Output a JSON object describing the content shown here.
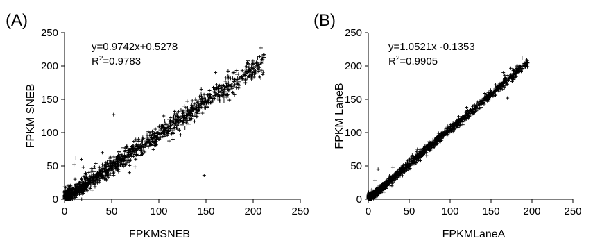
{
  "chart_data": [
    {
      "panel_label": "(A)",
      "type": "scatter",
      "xlabel": "FPKMSNEB",
      "ylabel": "FPKM SNEB",
      "xlim": [
        0,
        250
      ],
      "ylim": [
        0,
        250
      ],
      "xticks": [
        "0",
        "50",
        "100",
        "150",
        "200",
        "250"
      ],
      "yticks": [
        "0",
        "50",
        "100",
        "150",
        "200",
        "250"
      ],
      "grid": false,
      "marker": "+",
      "equation": "y=0.9742x+0.5278",
      "r2_prefix": "R",
      "r2_sup": "2",
      "r2_value": "=0.9783",
      "trendline": {
        "slope": 0.9742,
        "intercept": 0.5278,
        "x_range": [
          0,
          210
        ]
      },
      "point_cloud": {
        "x_max": 212,
        "spread_at_low": 14,
        "spread_at_high": 18
      },
      "outliers": [
        [
          12,
          62
        ],
        [
          18,
          60
        ],
        [
          52,
          127
        ],
        [
          148,
          36
        ],
        [
          130,
          147
        ],
        [
          160,
          190
        ],
        [
          6,
          20
        ],
        [
          10,
          52
        ],
        [
          145,
          165
        ],
        [
          105,
          125
        ],
        [
          20,
          48
        ],
        [
          40,
          70
        ]
      ]
    },
    {
      "panel_label": "(B)",
      "type": "scatter",
      "xlabel": "FPKMLaneA",
      "ylabel": "FPKM LaneB",
      "xlim": [
        0,
        250
      ],
      "ylim": [
        0,
        250
      ],
      "xticks": [
        "0",
        "50",
        "100",
        "150",
        "200",
        "250"
      ],
      "yticks": [
        "0",
        "50",
        "100",
        "150",
        "200",
        "250"
      ],
      "grid": false,
      "marker": "+",
      "equation": "y=1.0521x -0.1353",
      "r2_prefix": "R",
      "r2_sup": "2",
      "r2_value": "=0.9905",
      "trendline": {
        "slope": 1.0521,
        "intercept": -0.1353,
        "x_range": [
          0,
          192
        ]
      },
      "point_cloud": {
        "x_max": 195,
        "spread_at_low": 7,
        "spread_at_high": 8
      },
      "outliers": [
        [
          12,
          45
        ],
        [
          170,
          152
        ],
        [
          188,
          212
        ],
        [
          8,
          28
        ],
        [
          30,
          48
        ],
        [
          60,
          75
        ],
        [
          120,
          138
        ],
        [
          165,
          190
        ]
      ]
    }
  ]
}
